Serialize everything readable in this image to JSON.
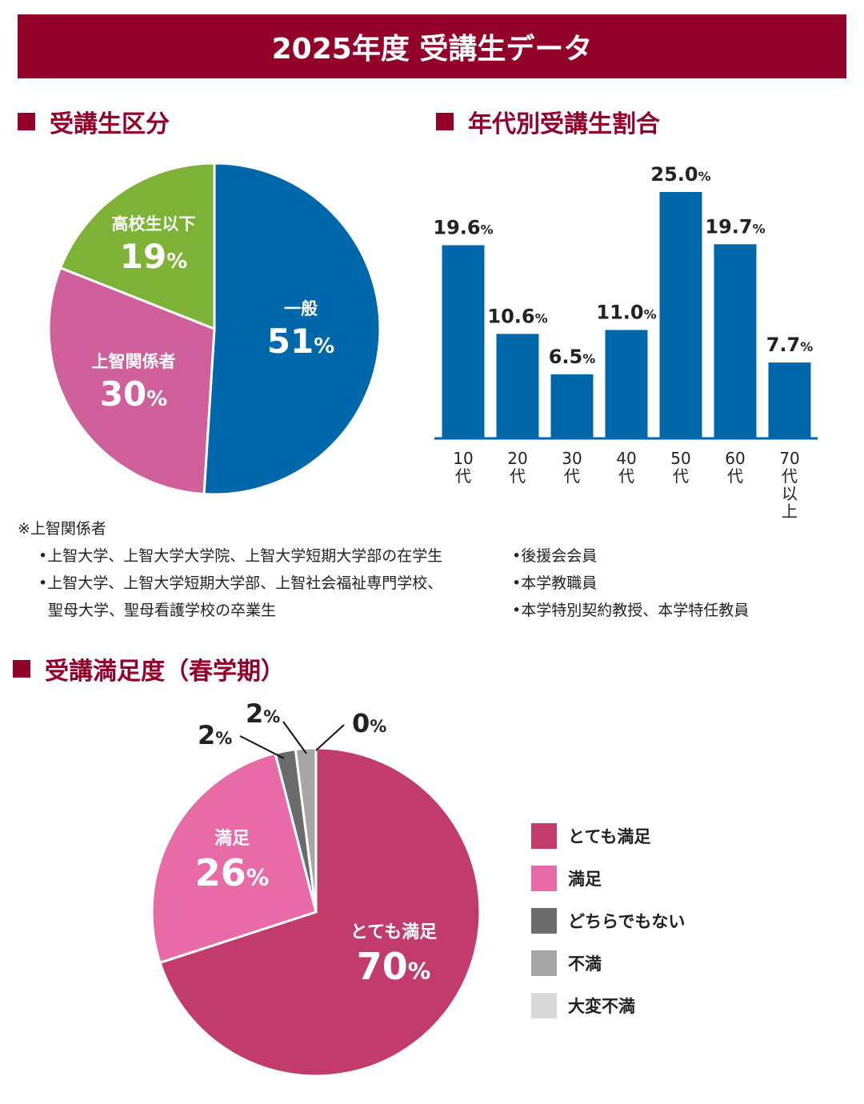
{
  "title": "2025年度 受講生データ",
  "chart_data": [
    {
      "type": "pie",
      "title": "受講生区分",
      "slices": [
        {
          "label": "一般",
          "value": 51,
          "color": "#0067ab"
        },
        {
          "label": "上智関係者",
          "value": 30,
          "color": "#d0609b"
        },
        {
          "label": "高校生以下",
          "value": 19,
          "color": "#7db236"
        }
      ],
      "unit": "%"
    },
    {
      "type": "bar",
      "title": "年代別受講生割合",
      "categories": [
        "10代",
        "20代",
        "30代",
        "40代",
        "50代",
        "60代",
        "70代以上"
      ],
      "values": [
        19.6,
        10.6,
        6.5,
        11.0,
        25.0,
        19.7,
        7.7
      ],
      "labels": [
        "19.6",
        "10.6",
        "6.5",
        "11.0",
        "25.0",
        "19.7",
        "7.7"
      ],
      "unit": "%",
      "color": "#0067ab"
    },
    {
      "type": "pie",
      "title": "受講満足度（春学期）",
      "slices": [
        {
          "label": "とても満足",
          "value": 70,
          "color": "#c13b6b"
        },
        {
          "label": "満足",
          "value": 26,
          "color": "#e86aa6"
        },
        {
          "label": "どちらでもない",
          "value": 2,
          "color": "#6b6b6b"
        },
        {
          "label": "不満",
          "value": 2,
          "color": "#a5a5a5"
        },
        {
          "label": "大変不満",
          "value": 0,
          "color": "#d9d9d9"
        }
      ],
      "unit": "%"
    }
  ],
  "notes": {
    "heading": "※上智関係者",
    "left": [
      "•上智大学、上智大学大学院、上智大学短期大学部の在学生",
      "•上智大学、上智大学短期大学部、上智社会福祉専門学校、",
      "聖母大学、聖母看護学校の卒業生"
    ],
    "right": [
      "•後援会会員",
      "•本学教職員",
      "•本学特別契約教授、本学特任教員"
    ]
  }
}
